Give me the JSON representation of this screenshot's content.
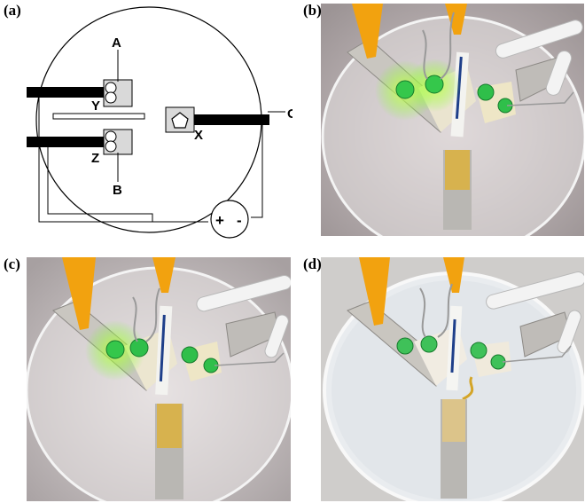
{
  "figure": {
    "panels": [
      {
        "label": "(a)"
      },
      {
        "label": "(b)"
      },
      {
        "label": "(c)"
      },
      {
        "label": "(d)"
      }
    ],
    "schematic": {
      "labels": {
        "A": "A",
        "B": "B",
        "X": "X",
        "Y": "Y",
        "Z": "Z",
        "O": "O",
        "plus": "+",
        "minus": "-"
      }
    },
    "colors": {
      "clip_yellow": "#f2a20f",
      "led_green": "#2fbf4a",
      "glow": "#a8ff3a",
      "foil": "#c9c6c0",
      "dish": "#dcdcdc"
    }
  }
}
